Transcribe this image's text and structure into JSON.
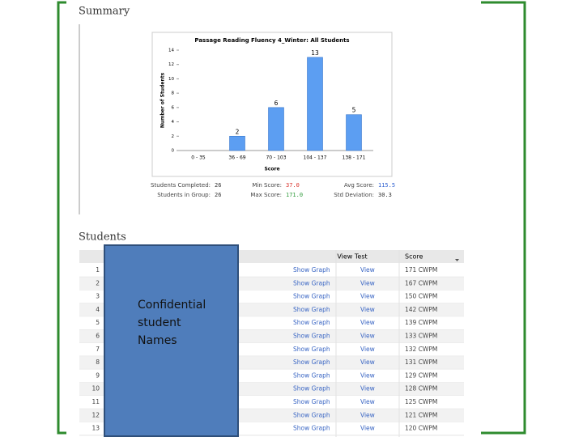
{
  "summary": {
    "heading": "Summary",
    "chart": {
      "type": "bar",
      "title": "Passage Reading Fluency 4_Winter: All Students",
      "x_label": "Score",
      "y_label": "Number of Students",
      "categories": [
        "0 - 35",
        "36 - 69",
        "70 - 103",
        "104 - 137",
        "138 - 171"
      ],
      "values": [
        0,
        2,
        6,
        13,
        5
      ],
      "color": "#5c9ef2",
      "ylim": [
        0,
        14
      ],
      "yticks": [
        0,
        2,
        4,
        6,
        8,
        10,
        12,
        14
      ]
    },
    "stats": [
      {
        "label": "Students Completed:",
        "value": "26"
      },
      {
        "label": "Students in Group:",
        "value": "26"
      },
      {
        "label": "Min Score:",
        "value": "37.0",
        "color": "#d9322b"
      },
      {
        "label": "Max Score:",
        "value": "171.0",
        "color": "#2e9a3a"
      },
      {
        "label": "Avg Score:",
        "value": "115.5",
        "color": "#2d5fd0"
      },
      {
        "label": "Std Deviation:",
        "value": "30.3"
      }
    ]
  },
  "students": {
    "heading": "Students",
    "columns": [
      "View Test",
      "Score"
    ],
    "rows": [
      {
        "number": 1,
        "graph": "Show Graph",
        "view": "View",
        "score": "171 CWPM"
      },
      {
        "number": 2,
        "graph": "Show Graph",
        "view": "View",
        "score": "167 CWPM"
      },
      {
        "number": 3,
        "graph": "Show Graph",
        "view": "View",
        "score": "150 CWPM"
      },
      {
        "number": 4,
        "graph": "Show Graph",
        "view": "View",
        "score": "142 CWPM"
      },
      {
        "number": 5,
        "graph": "Show Graph",
        "view": "View",
        "score": "139 CWPM"
      },
      {
        "number": 6,
        "graph": "Show Graph",
        "view": "View",
        "score": "133 CWPM"
      },
      {
        "number": 7,
        "graph": "Show Graph",
        "view": "View",
        "score": "132 CWPM"
      },
      {
        "number": 8,
        "graph": "Show Graph",
        "view": "View",
        "score": "131 CWPM"
      },
      {
        "number": 9,
        "graph": "Show Graph",
        "view": "View",
        "score": "129 CWPM"
      },
      {
        "number": 10,
        "graph": "Show Graph",
        "view": "View",
        "score": "128 CWPM"
      },
      {
        "number": 11,
        "graph": "Show Graph",
        "view": "View",
        "score": "125 CWPM"
      },
      {
        "number": 12,
        "graph": "Show Graph",
        "view": "View",
        "score": "121 CWPM"
      },
      {
        "number": 13,
        "graph": "Show Graph",
        "view": "View",
        "score": "120 CWPM"
      }
    ]
  },
  "overlay": {
    "label": "Confidential student Names"
  }
}
